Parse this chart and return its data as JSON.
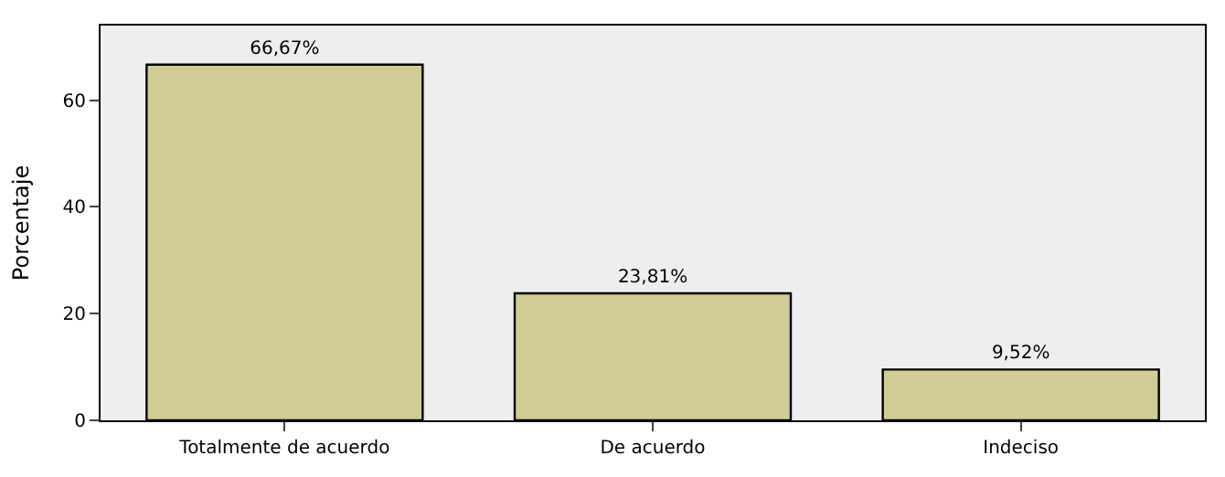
{
  "chart_data": {
    "type": "bar",
    "ylabel": "Porcentaje",
    "categories": [
      "Totalmente de acuerdo",
      "De acuerdo",
      "Indeciso"
    ],
    "values": [
      66.67,
      23.81,
      9.52
    ],
    "value_labels": [
      "66,67%",
      "23,81%",
      "9,52%"
    ],
    "color": "#d0cd96",
    "ylim": [
      0,
      74
    ],
    "yticks": [
      0,
      20,
      40,
      60
    ],
    "grid": false
  }
}
